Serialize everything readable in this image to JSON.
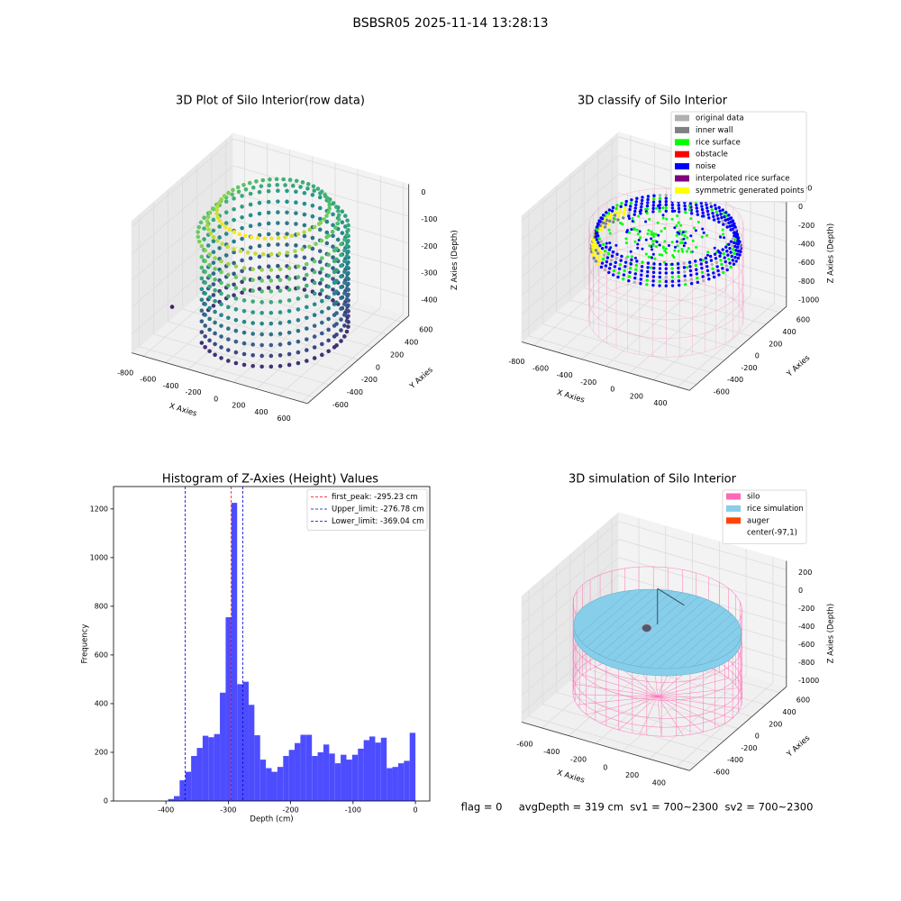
{
  "title": "BSBSR05 2025-11-14 13:28:13",
  "chart_data": [
    {
      "type": "scatter3d",
      "title": "3D Plot of Silo Interior(row data)",
      "xlabel": "X Axies",
      "ylabel": "Y Axies",
      "zlabel": "Z Axies (Depth)",
      "xlim": [
        -900,
        650
      ],
      "ylim": [
        -700,
        700
      ],
      "zlim": [
        -470,
        20
      ],
      "xticks": [
        -800,
        -600,
        -400,
        -200,
        0,
        200,
        400,
        600
      ],
      "yticks": [
        -600,
        -400,
        -200,
        0,
        200,
        400,
        600
      ],
      "zticks": [
        0,
        -100,
        -200,
        -300,
        -400
      ],
      "colormap": "viridis"
    },
    {
      "type": "scatter3d",
      "title": "3D classify of Silo Interior",
      "xlabel": "X Axies",
      "ylabel": "Y Axies",
      "zlabel": "Z Axies (Depth)",
      "xlim": [
        -900,
        500
      ],
      "ylim": [
        -700,
        700
      ],
      "zlim": [
        -1100,
        250
      ],
      "xticks": [
        -800,
        -600,
        -400,
        -200,
        0,
        200,
        400
      ],
      "yticks": [
        -600,
        -400,
        -200,
        0,
        200,
        400,
        600
      ],
      "zticks": [
        200,
        0,
        -200,
        -400,
        -600,
        -800,
        -1000
      ],
      "legend": [
        {
          "name": "original data",
          "color": "#b0b0b0"
        },
        {
          "name": "inner wall",
          "color": "#808080"
        },
        {
          "name": "rice surface",
          "color": "#00ff00"
        },
        {
          "name": "obstacle",
          "color": "#ff0000"
        },
        {
          "name": "noise",
          "color": "#0000ff"
        },
        {
          "name": "interpolated rice surface",
          "color": "#800080"
        },
        {
          "name": "symmetric generated points",
          "color": "#ffff00"
        }
      ]
    },
    {
      "type": "histogram",
      "title": "Histogram of Z-Axies (Height) Values",
      "xlabel": "Depth (cm)",
      "ylabel": "Frequency",
      "color": "#4d4dff",
      "bins": [
        -461.0,
        -451.78,
        -442.56,
        -433.34,
        -424.12,
        -414.9,
        -405.68,
        -396.46,
        -387.24,
        -378.02,
        -368.8,
        -359.58,
        -350.36,
        -341.14,
        -331.92,
        -322.7,
        -313.48,
        -304.26,
        -295.04,
        -285.82,
        -276.6,
        -267.38,
        -258.16,
        -248.94,
        -239.72,
        -230.5,
        -221.28,
        -212.06,
        -202.84,
        -193.62,
        -184.4,
        -175.18,
        -165.96,
        -156.74,
        -147.52,
        -138.3,
        -129.08,
        -119.86,
        -110.64,
        -101.42,
        -92.2,
        -82.98,
        -73.76,
        -64.54,
        -55.32,
        -46.1,
        -36.88,
        -27.66,
        -18.44,
        -9.22,
        0
      ],
      "counts": [
        0,
        0,
        0,
        0,
        0,
        0,
        0,
        8,
        20,
        85,
        120,
        185,
        218,
        268,
        262,
        275,
        445,
        755,
        1225,
        480,
        490,
        395,
        270,
        170,
        135,
        120,
        140,
        185,
        210,
        238,
        272,
        272,
        185,
        200,
        232,
        195,
        155,
        190,
        170,
        190,
        215,
        250,
        265,
        240,
        260,
        135,
        140,
        155,
        165,
        280
      ],
      "xlim": [
        -484,
        23
      ],
      "ylim": [
        0,
        1292
      ],
      "xticks": [
        -400,
        -300,
        -200,
        -100,
        0
      ],
      "yticks": [
        0,
        200,
        400,
        600,
        800,
        1000,
        1200
      ],
      "lines": [
        {
          "name": "first_peak: -295.23 cm",
          "value": -295.23,
          "color": "#ff0000"
        },
        {
          "name": "Upper_limit: -276.78 cm",
          "value": -276.78,
          "color": "#0000cc"
        },
        {
          "name": "Lower_limit: -369.04 cm",
          "value": -369.04,
          "color": "#0000cc"
        }
      ]
    },
    {
      "type": "surface3d",
      "title": "3D simulation of Silo Interior",
      "xlabel": "X Axies",
      "ylabel": "Y Axies",
      "zlabel": "Z Axies (Depth)",
      "xlim": [
        -750,
        500
      ],
      "ylim": [
        -700,
        700
      ],
      "zlim": [
        -1100,
        300
      ],
      "xticks": [
        -600,
        -400,
        -200,
        0,
        200,
        400
      ],
      "yticks": [
        -600,
        -400,
        -200,
        0,
        200,
        400,
        600
      ],
      "zticks": [
        200,
        0,
        -200,
        -400,
        -600,
        -800,
        -1000
      ],
      "legend": [
        {
          "name": "silo",
          "color": "#ff69b4"
        },
        {
          "name": "rice simulation",
          "color": "#87ceeb"
        },
        {
          "name": "auger",
          "color": "#ff4500"
        },
        {
          "name": "center(-97,1)",
          "color": "#ffffff"
        }
      ],
      "note": "flag = 0     avgDepth = 319 cm  sv1 = 700~2300  sv2 = 700~2300"
    }
  ]
}
